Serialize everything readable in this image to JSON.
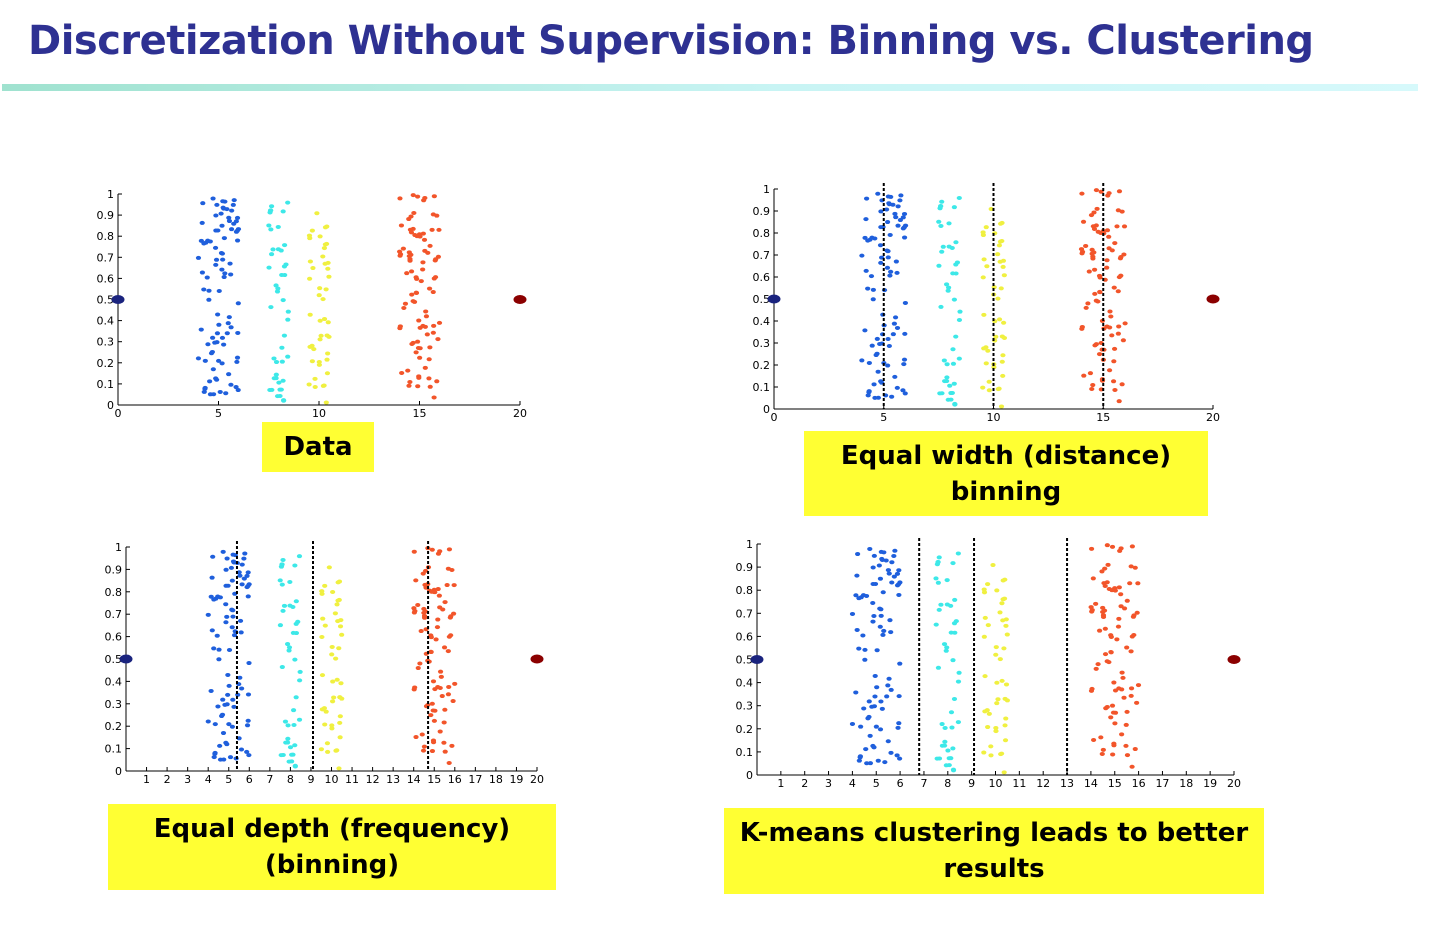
{
  "title": "Discretization Without Supervision: Binning vs. Clustering",
  "colors": {
    "title": "#2e3192",
    "rule": "#a8e6d6",
    "caption_bg": "#ffff33",
    "c1": "#1f5fdc",
    "c2": "#3de8e8",
    "c3": "#f0f040",
    "c4": "#f2552a",
    "outlier_left": "#1a237e",
    "outlier_right": "#8b0000"
  },
  "chart_data": [
    {
      "type": "scatter",
      "name": "data",
      "caption": "Data",
      "xlim": [
        0,
        20
      ],
      "ylim": [
        0,
        1
      ],
      "xticks": [
        "0",
        "5",
        "10",
        "15",
        "20"
      ],
      "yticks": [
        "0",
        "0.1",
        "0.2",
        "0.3",
        "0.4",
        "0.5",
        "0.6",
        "0.7",
        "0.8",
        "0.9",
        "1"
      ],
      "clusters": [
        {
          "x_range": [
            4,
            6
          ],
          "y_range": [
            0.05,
            1.0
          ],
          "n": 90,
          "color": "c1"
        },
        {
          "x_range": [
            7.5,
            8.5
          ],
          "y_range": [
            0.0,
            0.98
          ],
          "n": 45,
          "color": "c2"
        },
        {
          "x_range": [
            9.5,
            10.5
          ],
          "y_range": [
            0.0,
            0.91
          ],
          "n": 45,
          "color": "c3"
        },
        {
          "x_range": [
            14,
            16
          ],
          "y_range": [
            0.02,
            1.0
          ],
          "n": 90,
          "color": "c4"
        }
      ],
      "outliers": [
        {
          "x": 0,
          "y": 0.5,
          "color": "outlier_left"
        },
        {
          "x": 20,
          "y": 0.5,
          "color": "outlier_right"
        }
      ],
      "boundaries": []
    },
    {
      "type": "scatter",
      "name": "equal-width",
      "caption": "Equal width (distance) binning",
      "xlim": [
        0,
        20
      ],
      "ylim": [
        0,
        1
      ],
      "xticks": [
        "0",
        "5",
        "10",
        "15",
        "20"
      ],
      "yticks": [
        "0",
        "0.1",
        "0.2",
        "0.3",
        "0.4",
        "0.5",
        "0.6",
        "0.7",
        "0.8",
        "0.9",
        "1"
      ],
      "clusters": [
        {
          "x_range": [
            4,
            6
          ],
          "y_range": [
            0.05,
            1.0
          ],
          "n": 90,
          "color": "c1"
        },
        {
          "x_range": [
            7.5,
            8.5
          ],
          "y_range": [
            0.0,
            0.98
          ],
          "n": 45,
          "color": "c2"
        },
        {
          "x_range": [
            9.5,
            10.5
          ],
          "y_range": [
            0.0,
            0.91
          ],
          "n": 45,
          "color": "c3"
        },
        {
          "x_range": [
            14,
            16
          ],
          "y_range": [
            0.02,
            1.0
          ],
          "n": 90,
          "color": "c4"
        }
      ],
      "outliers": [
        {
          "x": 0,
          "y": 0.5,
          "color": "outlier_left"
        },
        {
          "x": 20,
          "y": 0.5,
          "color": "outlier_right"
        }
      ],
      "boundaries": [
        5,
        10,
        15
      ]
    },
    {
      "type": "scatter",
      "name": "equal-depth",
      "caption": "Equal depth (frequency) (binning)",
      "xlim": [
        0,
        20
      ],
      "ylim": [
        0,
        1
      ],
      "xticks": [
        "",
        "1",
        "2",
        "3",
        "4",
        "5",
        "6",
        "7",
        "8",
        "9",
        "10",
        "11",
        "12",
        "13",
        "14",
        "15",
        "16",
        "17",
        "18",
        "19",
        "20"
      ],
      "yticks": [
        "0",
        "0.1",
        "0.2",
        "0.3",
        "0.4",
        "0.5",
        "0.6",
        "0.7",
        "0.8",
        "0.9",
        "1"
      ],
      "clusters": [
        {
          "x_range": [
            4,
            6
          ],
          "y_range": [
            0.05,
            1.0
          ],
          "n": 90,
          "color": "c1"
        },
        {
          "x_range": [
            7.5,
            8.5
          ],
          "y_range": [
            0.0,
            0.98
          ],
          "n": 45,
          "color": "c2"
        },
        {
          "x_range": [
            9.5,
            10.5
          ],
          "y_range": [
            0.0,
            0.91
          ],
          "n": 45,
          "color": "c3"
        },
        {
          "x_range": [
            14,
            16
          ],
          "y_range": [
            0.02,
            1.0
          ],
          "n": 90,
          "color": "c4"
        }
      ],
      "outliers": [
        {
          "x": 0,
          "y": 0.5,
          "color": "outlier_left"
        },
        {
          "x": 20,
          "y": 0.5,
          "color": "outlier_right"
        }
      ],
      "boundaries": [
        5.4,
        9.1,
        14.7
      ]
    },
    {
      "type": "scatter",
      "name": "kmeans",
      "caption": "K-means clustering leads to better results",
      "xlim": [
        0,
        20
      ],
      "ylim": [
        0,
        1
      ],
      "xticks": [
        "",
        "1",
        "2",
        "3",
        "4",
        "5",
        "6",
        "7",
        "8",
        "9",
        "10",
        "11",
        "12",
        "13",
        "14",
        "15",
        "16",
        "17",
        "18",
        "19",
        "20"
      ],
      "yticks": [
        "0",
        "0.1",
        "0.2",
        "0.3",
        "0.4",
        "0.5",
        "0.6",
        "0.7",
        "0.8",
        "0.9",
        "1"
      ],
      "clusters": [
        {
          "x_range": [
            4,
            6
          ],
          "y_range": [
            0.05,
            1.0
          ],
          "n": 90,
          "color": "c1"
        },
        {
          "x_range": [
            7.5,
            8.5
          ],
          "y_range": [
            0.0,
            0.98
          ],
          "n": 45,
          "color": "c2"
        },
        {
          "x_range": [
            9.5,
            10.5
          ],
          "y_range": [
            0.0,
            0.91
          ],
          "n": 45,
          "color": "c3"
        },
        {
          "x_range": [
            14,
            16
          ],
          "y_range": [
            0.02,
            1.0
          ],
          "n": 90,
          "color": "c4"
        }
      ],
      "outliers": [
        {
          "x": 0,
          "y": 0.5,
          "color": "outlier_left"
        },
        {
          "x": 20,
          "y": 0.5,
          "color": "outlier_right"
        }
      ],
      "boundaries": [
        6.8,
        9.1,
        13
      ]
    }
  ]
}
